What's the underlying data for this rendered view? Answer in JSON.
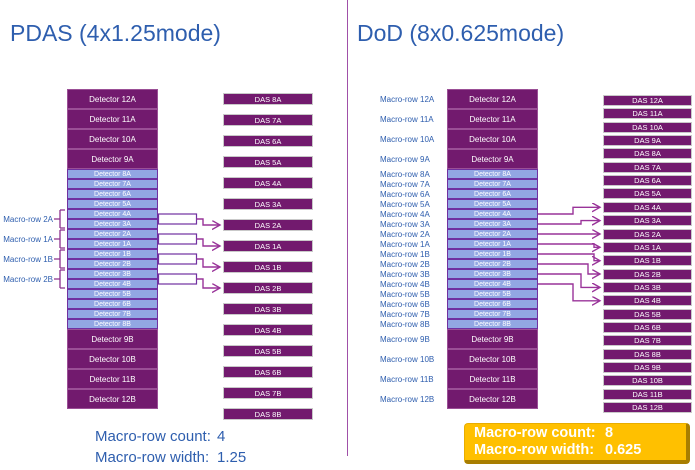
{
  "left": {
    "title": "PDAS (4x1.25mode)",
    "detector_rows": [
      {
        "label": "Detector 12A",
        "type": "dark"
      },
      {
        "label": "Detector 11A",
        "type": "dark"
      },
      {
        "label": "Detector 10A",
        "type": "dark"
      },
      {
        "label": "Detector 9A",
        "type": "dark"
      },
      {
        "label": "Detector 8A",
        "type": "light"
      },
      {
        "label": "Detector 7A",
        "type": "light"
      },
      {
        "label": "Detector 6A",
        "type": "light"
      },
      {
        "label": "Detector 5A",
        "type": "light"
      },
      {
        "label": "Detector 4A",
        "type": "light"
      },
      {
        "label": "Detector 3A",
        "type": "light"
      },
      {
        "label": "Detector 2A",
        "type": "light"
      },
      {
        "label": "Detector 1A",
        "type": "light"
      },
      {
        "label": "Detector 1B",
        "type": "light"
      },
      {
        "label": "Detector 2B",
        "type": "light"
      },
      {
        "label": "Detector 3B",
        "type": "light"
      },
      {
        "label": "Detector 4B",
        "type": "light"
      },
      {
        "label": "Detector 5B",
        "type": "light"
      },
      {
        "label": "Detector 6B",
        "type": "light"
      },
      {
        "label": "Detector 7B",
        "type": "light"
      },
      {
        "label": "Detector 8B",
        "type": "light"
      },
      {
        "label": "Detector 9B",
        "type": "dark"
      },
      {
        "label": "Detector 10B",
        "type": "dark"
      },
      {
        "label": "Detector 11B",
        "type": "dark"
      },
      {
        "label": "Detector 12B",
        "type": "dark"
      }
    ],
    "das_boxes": [
      "DAS 8A",
      "DAS 7A",
      "DAS 6A",
      "DAS 5A",
      "DAS 4A",
      "DAS 3A",
      "DAS 2A",
      "DAS 1A",
      "DAS 1B",
      "DAS 2B",
      "DAS 3B",
      "DAS 4B",
      "DAS 5B",
      "DAS 6B",
      "DAS 7B",
      "DAS 8B"
    ],
    "macro_rows": [
      {
        "label": "Macro-row 2A",
        "detectors": [
          "Detector 4A",
          "Detector 3A"
        ],
        "das": "DAS 2A"
      },
      {
        "label": "Macro-row 1A",
        "detectors": [
          "Detector 2A",
          "Detector 1A"
        ],
        "das": "DAS 1A"
      },
      {
        "label": "Macro-row 1B",
        "detectors": [
          "Detector 1B",
          "Detector 2B"
        ],
        "das": "DAS 1B"
      },
      {
        "label": "Macro-row 2B",
        "detectors": [
          "Detector 3B",
          "Detector 4B"
        ],
        "das": "DAS 2B"
      }
    ],
    "stats": {
      "count_label": "Macro-row count:",
      "count_value": "4",
      "width_label": "Macro-row width:",
      "width_value": "1.25"
    }
  },
  "right": {
    "title": "DoD (8x0.625mode)",
    "rows": [
      {
        "macro_label": "Macro-row 12A",
        "detector": "Detector 12A",
        "type": "dark"
      },
      {
        "macro_label": "Macro-row 11A",
        "detector": "Detector 11A",
        "type": "dark"
      },
      {
        "macro_label": "Macro-row 10A",
        "detector": "Detector 10A",
        "type": "dark"
      },
      {
        "macro_label": "Macro-row 9A",
        "detector": "Detector 9A",
        "type": "dark"
      },
      {
        "macro_label": "Macro-row 8A",
        "detector": "Detector 8A",
        "type": "light"
      },
      {
        "macro_label": "Macro-row 7A",
        "detector": "Detector 7A",
        "type": "light"
      },
      {
        "macro_label": "Macro-row 6A",
        "detector": "Detector 6A",
        "type": "light"
      },
      {
        "macro_label": "Macro-row 5A",
        "detector": "Detector 5A",
        "type": "light"
      },
      {
        "macro_label": "Macro-row 4A",
        "detector": "Detector 4A",
        "type": "light"
      },
      {
        "macro_label": "Macro-row 3A",
        "detector": "Detector 3A",
        "type": "light"
      },
      {
        "macro_label": "Macro-row 2A",
        "detector": "Detector 2A",
        "type": "light"
      },
      {
        "macro_label": "Macro-row 1A",
        "detector": "Detector 1A",
        "type": "light"
      },
      {
        "macro_label": "Macro-row 1B",
        "detector": "Detector 1B",
        "type": "light"
      },
      {
        "macro_label": "Macro-row 2B",
        "detector": "Detector 2B",
        "type": "light"
      },
      {
        "macro_label": "Macro-row 3B",
        "detector": "Detector 3B",
        "type": "light"
      },
      {
        "macro_label": "Macro-row 4B",
        "detector": "Detector 4B",
        "type": "light"
      },
      {
        "macro_label": "Macro-row 5B",
        "detector": "Detector 5B",
        "type": "light"
      },
      {
        "macro_label": "Macro-row 6B",
        "detector": "Detector 6B",
        "type": "light"
      },
      {
        "macro_label": "Macro-row 7B",
        "detector": "Detector 7B",
        "type": "light"
      },
      {
        "macro_label": "Macro-row 8B",
        "detector": "Detector 8B",
        "type": "light"
      },
      {
        "macro_label": "Macro-row 9B",
        "detector": "Detector 9B",
        "type": "dark"
      },
      {
        "macro_label": "Macro-row 10B",
        "detector": "Detector 10B",
        "type": "dark"
      },
      {
        "macro_label": "Macro-row 11B",
        "detector": "Detector 11B",
        "type": "dark"
      },
      {
        "macro_label": "Macro-row 12B",
        "detector": "Detector 12B",
        "type": "dark"
      }
    ],
    "das_boxes": [
      "DAS 12A",
      "DAS 11A",
      "DAS 10A",
      "DAS 9A",
      "DAS 8A",
      "DAS 7A",
      "DAS 6A",
      "DAS 5A",
      "DAS 4A",
      "DAS 3A",
      "DAS 2A",
      "DAS 1A",
      "DAS 1B",
      "DAS 2B",
      "DAS 3B",
      "DAS 4B",
      "DAS 5B",
      "DAS 6B",
      "DAS 7B",
      "DAS 8B",
      "DAS 9B",
      "DAS 10B",
      "DAS 11B",
      "DAS 12B"
    ],
    "connections": [
      {
        "from": "Detector 4A",
        "to": "DAS 4A"
      },
      {
        "from": "Detector 3A",
        "to": "DAS 3A"
      },
      {
        "from": "Detector 2A",
        "to": "DAS 2A"
      },
      {
        "from": "Detector 1A",
        "to": "DAS 1A"
      },
      {
        "from": "Detector 1B",
        "to": "DAS 1B"
      },
      {
        "from": "Detector 2B",
        "to": "DAS 2B"
      },
      {
        "from": "Detector 3B",
        "to": "DAS 3B"
      },
      {
        "from": "Detector 4B",
        "to": "DAS 4B"
      }
    ],
    "stats": {
      "count_label": "Macro-row count:",
      "count_value": "8",
      "width_label": "Macro-row width:",
      "width_value": "0.625"
    }
  },
  "colors": {
    "title_blue": "#2e5eae",
    "dark_purple": "#721a6e",
    "light_blue": "#92a7e3",
    "line_purple": "#993399",
    "row_border_purple": "#7030a0",
    "stats_gold": "#ffc000",
    "stats_gold_border": "#a87e00"
  }
}
